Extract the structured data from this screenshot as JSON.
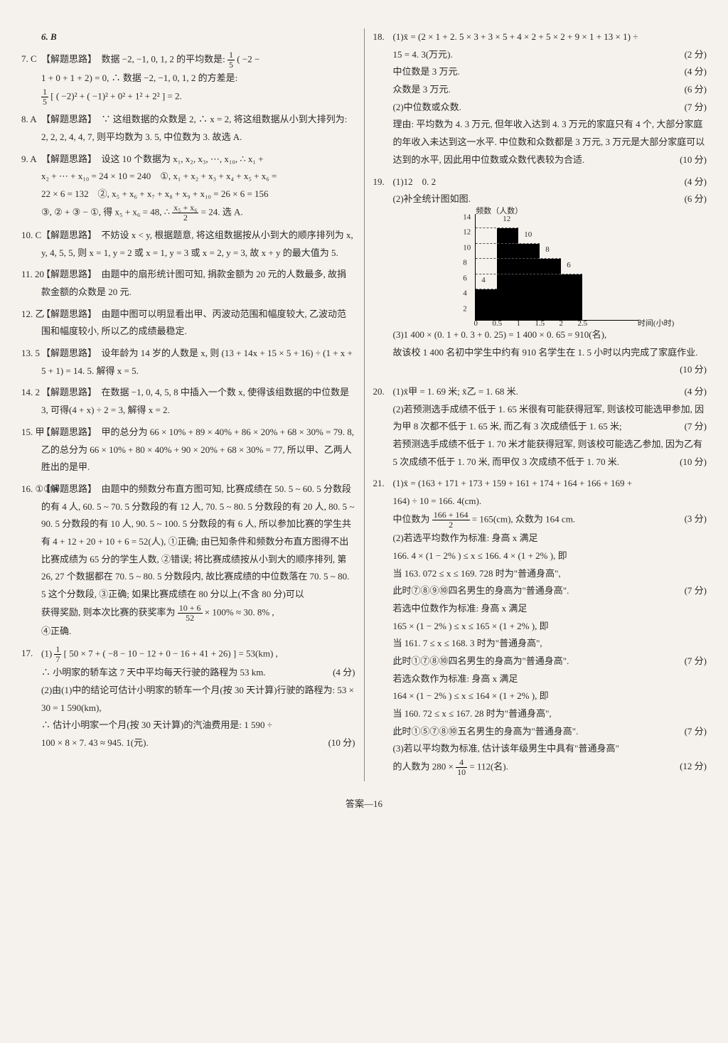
{
  "left": {
    "q6": "6. B",
    "q7": {
      "num": "7. C",
      "text1": "【解题思路】　数据 −2, −1, 0, 1, 2 的平均数是:",
      "frac1n": "1",
      "frac1d": "5",
      "text2": "( −2 −",
      "text3": "1 + 0 + 1 + 2) = 0, ∴ 数据 −2, −1, 0, 1, 2 的方差是:",
      "frac2n": "1",
      "frac2d": "5",
      "text4": "[ ( −2)² + ( −1)² + 0² + 1² + 2² ] = 2."
    },
    "q8": {
      "num": "8. A",
      "text": "【解题思路】　∵ 这组数据的众数是 2, ∴ x = 2, 将这组数据从小到大排列为: 2, 2, 2, 4, 4, 7, 则平均数为 3. 5, 中位数为 3. 故选 A."
    },
    "q9": {
      "num": "9. A",
      "text1": "【解题思路】　设这 10 个数据为 x₁, x₂, x₃, ⋯, x₁₀, ∴ x₁ +",
      "text2": "x₂ + ⋯ + x₁₀ = 24 × 10 = 240　①, x₁ + x₂ + x₃ + x₄ + x₅ + x₆ =",
      "text3": "22 × 6 = 132　②, x₅ + x₆ + x₇ + x₈ + x₉ + x₁₀ = 26 × 6 = 156",
      "text4": "③, ② + ③ − ①, 得 x₅ + x₆ = 48, ∴",
      "frac3n": "x₅ + x₆",
      "frac3d": "2",
      "text5": "= 24. 选 A."
    },
    "q10": {
      "num": "10. C",
      "text": "【解题思路】　不妨设 x < y, 根据题意, 将这组数据按从小到大的顺序排列为 x, y, 4, 5, 5, 则 x = 1, y = 2 或 x = 1, y = 3 或 x = 2, y = 3, 故 x + y 的最大值为 5."
    },
    "q11": {
      "num": "11. 20",
      "text": "【解题思路】　由题中的扇形统计图可知, 捐款金额为 20 元的人数最多, 故捐款金额的众数是 20 元."
    },
    "q12": {
      "num": "12. 乙",
      "text": "【解题思路】　由题中图可以明显看出甲、丙波动范围和幅度较大, 乙波动范围和幅度较小, 所以乙的成绩最稳定."
    },
    "q13": {
      "num": "13. 5",
      "text": "【解题思路】　设年龄为 14 岁的人数是 x, 则 (13 + 14x + 15 × 5 + 16) ÷ (1 + x + 5 + 1) = 14. 5. 解得 x = 5."
    },
    "q14": {
      "num": "14. 2",
      "text": "【解题思路】　在数据 −1, 0, 4, 5, 8 中插入一个数 x, 使得该组数据的中位数是 3, 可得(4 + x) ÷ 2 = 3, 解得 x = 2."
    },
    "q15": {
      "num": "15. 甲",
      "text": "【解题思路】　甲的总分为 66 × 10% + 89 × 40% + 86 × 20% + 68 × 30% = 79. 8, 乙的总分为 66 × 10% + 80 × 40% + 90 × 20% + 68 × 30% = 77, 所以甲、乙两人胜出的是甲."
    },
    "q16": {
      "num": "16. ①③④",
      "text1": "【解题思路】　由题中的频数分布直方图可知, 比赛成绩在 50. 5 ~ 60. 5 分数段的有 4 人, 60. 5 ~ 70. 5 分数段的有 12 人, 70. 5 ~ 80. 5 分数段的有 20 人, 80. 5 ~ 90. 5 分数段的有 10 人, 90. 5 ~ 100. 5 分数段的有 6 人, 所以参加比赛的学生共有 4 + 12 + 20 + 10 + 6 = 52(人), ①正确; 由已知条件和频数分布直方图得不出比赛成绩为 65 分的学生人数, ②错误; 将比赛成绩按从小到大的顺序排列, 第 26, 27 个数据都在 70. 5 ~ 80. 5 分数段内, 故比赛成绩的中位数落在 70. 5 ~ 80. 5 这个分数段, ③正确; 如果比赛成绩在 80 分以上(不含 80 分)可以",
      "text2": "获得奖励, 则本次比赛的获奖率为",
      "frac4n": "10 + 6",
      "frac4d": "52",
      "text3": "× 100% ≈ 30. 8% ,",
      "text4": "④正确."
    },
    "q17": {
      "num": "17.",
      "part1a": "(1)",
      "frac5n": "1",
      "frac5d": "7",
      "part1b": "[ 50 × 7 + ( −8 − 10 − 12 + 0 − 16 + 41 + 26) ] = 53(km) ,",
      "part1c": "∴ 小明家的轿车这 7 天中平均每天行驶的路程为 53 km.",
      "score1": "(4 分)",
      "part2a": "(2)由(1)中的结论可估计小明家的轿车一个月(按 30 天计算)行驶的路程为: 53 × 30 = 1 590(km),",
      "part2b": "∴ 估计小明家一个月(按 30 天计算)的汽油费用是: 1 590 ÷",
      "part2c": "100 × 8 × 7. 43 ≈ 945. 1(元).",
      "score2": "(10 分)"
    }
  },
  "right": {
    "q18": {
      "num": "18.",
      "p1a": "(1)x̄ = (2 × 1 + 2. 5 × 3 + 3 × 5 + 4 × 2 + 5 × 2 + 9 × 1 + 13 × 1) ÷",
      "p1b": "15 = 4. 3(万元).",
      "s1": "(2 分)",
      "p1c": "中位数是 3 万元.",
      "s2": "(4 分)",
      "p1d": "众数是 3 万元.",
      "s3": "(6 分)",
      "p2a": "(2)中位数或众数.",
      "s4": "(7 分)",
      "p2b": "理由: 平均数为 4. 3 万元, 但年收入达到 4. 3 万元的家庭只有 4 个, 大部分家庭的年收入未达到这一水平. 中位数和众数都是 3 万元, 3 万元是大部分家庭可以达到的水平, 因此用中位数或众数代表较为合适.",
      "s5": "(10 分)"
    },
    "q19": {
      "num": "19.",
      "p1": "(1)12　0. 2",
      "s1": "(4 分)",
      "p2": "(2)补全统计图如图.",
      "s2": "(6 分)",
      "chart": {
        "ylabel": "频数（人数）",
        "xlabel": "时间(小时)",
        "yticks": [
          "2",
          "4",
          "6",
          "8",
          "10",
          "12",
          "14"
        ],
        "xticks": [
          "0",
          "0.5",
          "1",
          "1.5",
          "2",
          "2.5"
        ],
        "bars": [
          {
            "x": 0,
            "h": 4
          },
          {
            "x": 1,
            "h": 12
          },
          {
            "x": 2,
            "h": 10
          },
          {
            "x": 3,
            "h": 8
          },
          {
            "x": 4,
            "h": 6
          }
        ]
      },
      "p3": "(3)1 400 × (0. 1 + 0. 3 + 0. 25) = 1 400 × 0. 65 = 910(名),",
      "p4": "故该校 1 400 名初中学生中约有 910 名学生在 1. 5 小时以内完成了家庭作业.",
      "s3": "(10 分)"
    },
    "q20": {
      "num": "20.",
      "p1": "(1)x̄甲 = 1. 69 米; x̄乙 = 1. 68 米.",
      "s1": "(4 分)",
      "p2": "(2)若预测选手成绩不低于 1. 65 米很有可能获得冠军, 则该校可能选甲参加, 因为甲 8 次都不低于 1. 65 米, 而乙有 3 次成绩低于 1. 65 米;",
      "s2": "(7 分)",
      "p3": "若预测选手成绩不低于 1. 70 米才能获得冠军, 则该校可能选乙参加, 因为乙有 5 次成绩不低于 1. 70 米, 而甲仅 3 次成绩不低于 1. 70 米.",
      "s3": "(10 分)"
    },
    "q21": {
      "num": "21.",
      "p1a": "(1)x̄ = (163 + 171 + 173 + 159 + 161 + 174 + 164 + 166 + 169 +",
      "p1b": "164) ÷ 10 = 166. 4(cm).",
      "p1c": "中位数为",
      "frac6n": "166 + 164",
      "frac6d": "2",
      "p1d": "= 165(cm), 众数为 164 cm.",
      "s1": "(3 分)",
      "p2a": "(2)若选平均数作为标准: 身高 x 满足",
      "p2b": "166. 4 × (1 − 2% ) ≤ x ≤ 166. 4 × (1 + 2% ), 即",
      "p2c": "当 163. 072 ≤ x ≤ 169. 728 时为\"普通身高\",",
      "p2d": "此时⑦⑧⑨⑩四名男生的身高为\"普通身高\".",
      "s2": "(7 分)",
      "p3a": "若选中位数作为标准: 身高 x 满足",
      "p3b": "165 × (1 − 2% ) ≤ x ≤ 165 × (1 + 2% ), 即",
      "p3c": "当 161. 7 ≤ x ≤ 168. 3 时为\"普通身高\",",
      "p3d": "此时①⑦⑧⑩四名男生的身高为\"普通身高\".",
      "s3": "(7 分)",
      "p4a": "若选众数作为标准: 身高 x 满足",
      "p4b": "164 × (1 − 2% ) ≤ x ≤ 164 × (1 + 2% ), 即",
      "p4c": "当 160. 72 ≤ x ≤ 167. 28 时为\"普通身高\",",
      "p4d": "此时①⑤⑦⑧⑩五名男生的身高为\"普通身高\".",
      "s4": "(7 分)",
      "p5a": "(3)若以平均数为标准, 估计该年级男生中具有\"普通身高\"",
      "p5b": "的人数为 280 ×",
      "frac7n": "4",
      "frac7d": "10",
      "p5c": "= 112(名).",
      "s5": "(12 分)"
    }
  },
  "footer": "答案—16"
}
